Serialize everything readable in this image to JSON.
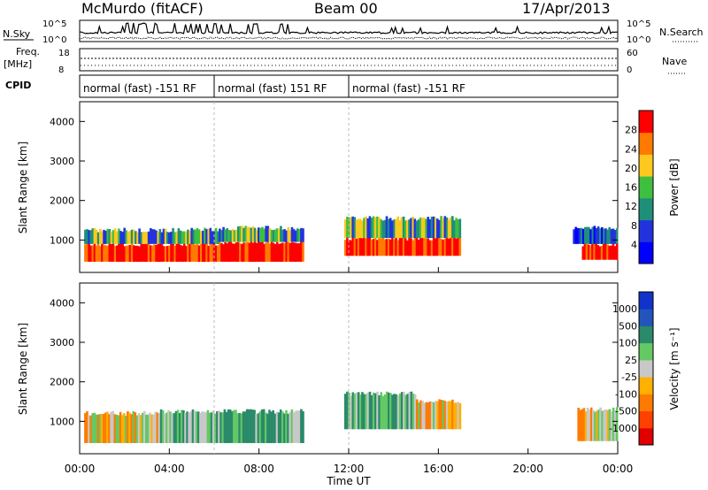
{
  "header": {
    "station": "McMurdo (fitACF)",
    "beam": "Beam 00",
    "date": "17/Apr/2013"
  },
  "top_panels": {
    "nsky_label": "N.Sky",
    "nsearch_label": "N.Search",
    "nsky_ticks": [
      "10^5",
      "10^0"
    ],
    "freq_label": "Freq.",
    "freq_unit": "[MHz]",
    "freq_ticks": [
      "18",
      "8"
    ],
    "nave_label": "Nave",
    "nave_ticks": [
      "60",
      "0"
    ],
    "cpid_label": "CPID",
    "cpid_segments": [
      {
        "label": "normal (fast) -151 RF",
        "start_h": 0,
        "end_h": 6
      },
      {
        "label": "normal (fast) 151 RF",
        "start_h": 6,
        "end_h": 12
      },
      {
        "label": "normal (fast) -151 RF",
        "start_h": 12,
        "end_h": 24
      }
    ]
  },
  "chart_data": [
    {
      "type": "heatmap",
      "name": "power",
      "ylabel": "Slant Range [km]",
      "xlabel": "Time UT",
      "xlim": [
        0,
        24
      ],
      "ylim": [
        180,
        4500
      ],
      "yticks": [
        1000,
        2000,
        3000,
        4000
      ],
      "xticks": [
        "00:00",
        "04:00",
        "08:00",
        "12:00",
        "16:00",
        "20:00",
        "00:00"
      ],
      "colorbar": {
        "label": "Power [dB]",
        "ticks": [
          "28",
          "24",
          "20",
          "16",
          "12",
          "8",
          "4"
        ],
        "colors": [
          "#0000ff",
          "#2233dd",
          "#1f8f7a",
          "#3fbf3f",
          "#ffc81e",
          "#ff7a00",
          "#ff0000"
        ]
      },
      "regions": [
        {
          "t0": 0.2,
          "t1": 6.2,
          "r0": 450,
          "r1": 900,
          "level": "high"
        },
        {
          "t0": 0.2,
          "t1": 6.2,
          "r0": 900,
          "r1": 1250,
          "level": "mid"
        },
        {
          "t0": 6.2,
          "t1": 10.0,
          "r0": 450,
          "r1": 950,
          "level": "high"
        },
        {
          "t0": 6.2,
          "t1": 10.0,
          "r0": 950,
          "r1": 1300,
          "level": "mid"
        },
        {
          "t0": 11.8,
          "t1": 17.0,
          "r0": 600,
          "r1": 1050,
          "level": "high"
        },
        {
          "t0": 11.8,
          "t1": 17.0,
          "r0": 1050,
          "r1": 1550,
          "level": "mid"
        },
        {
          "t0": 22.4,
          "t1": 24.0,
          "r0": 500,
          "r1": 900,
          "level": "high"
        },
        {
          "t0": 22.0,
          "t1": 24.0,
          "r0": 900,
          "r1": 1300,
          "level": "low"
        }
      ]
    },
    {
      "type": "heatmap",
      "name": "velocity",
      "ylabel": "Slant Range [km]",
      "xlabel": "Time UT",
      "xlim": [
        0,
        24
      ],
      "ylim": [
        180,
        4500
      ],
      "yticks": [
        1000,
        2000,
        3000,
        4000
      ],
      "xticks": [
        "00:00",
        "04:00",
        "08:00",
        "12:00",
        "16:00",
        "20:00",
        "00:00"
      ],
      "colorbar": {
        "label": "Velocity [m s⁻¹]",
        "ticks": [
          "1000",
          "500",
          "100",
          "25",
          "-25",
          "-100",
          "-500",
          "-1000"
        ],
        "colors": [
          "#e00000",
          "#ff4000",
          "#ff7a00",
          "#ffb000",
          "#c8c8c8",
          "#64c864",
          "#2a8a6a",
          "#2255bb",
          "#1133cc"
        ]
      },
      "regions": [
        {
          "t0": 0.2,
          "t1": 3.5,
          "r0": 450,
          "r1": 1200,
          "level": "orange"
        },
        {
          "t0": 3.5,
          "t1": 10.0,
          "r0": 450,
          "r1": 1250,
          "level": "green"
        },
        {
          "t0": 11.8,
          "t1": 15.0,
          "r0": 800,
          "r1": 1700,
          "level": "green"
        },
        {
          "t0": 15.0,
          "t1": 17.0,
          "r0": 800,
          "r1": 1500,
          "level": "orange"
        },
        {
          "t0": 22.2,
          "t1": 24.0,
          "r0": 500,
          "r1": 1300,
          "level": "orange"
        }
      ]
    }
  ]
}
